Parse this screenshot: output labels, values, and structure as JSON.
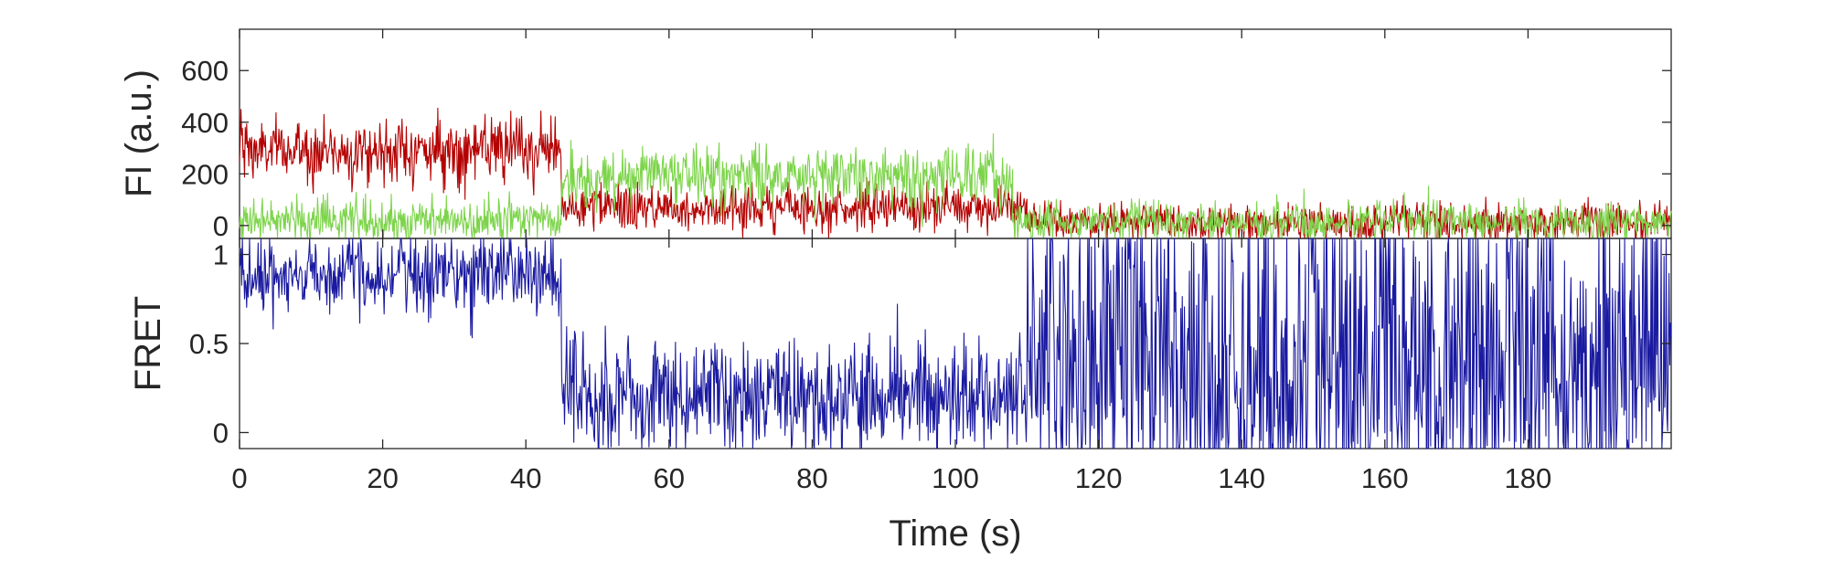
{
  "chart_data": [
    {
      "id": "fluorescence",
      "type": "line",
      "ylabel": "FI (a.u.)",
      "xlim": [
        0,
        200
      ],
      "ylim": [
        -50,
        760
      ],
      "yticks": [
        0,
        200,
        400,
        600
      ],
      "ytick_labels": [
        "0",
        "200",
        "400",
        "600"
      ],
      "grid": false,
      "series": [
        {
          "color": "#b40000",
          "sample_step": 0.1,
          "segments": [
            {
              "x": [
                0,
                1.5
              ],
              "mean": 300,
              "noise": 80
            },
            {
              "x": [
                1.5,
                45
              ],
              "mean": 290,
              "noise": 60
            },
            {
              "x": [
                45,
                110
              ],
              "mean": 70,
              "noise": 45
            },
            {
              "x": [
                110,
                200
              ],
              "mean": 15,
              "noise": 38
            }
          ]
        },
        {
          "color": "#7dd44b",
          "sample_step": 0.1,
          "segments": [
            {
              "x": [
                0,
                45
              ],
              "mean": 20,
              "noise": 42
            },
            {
              "x": [
                45,
                108
              ],
              "mean": 190,
              "noise": 55
            },
            {
              "x": [
                108,
                200
              ],
              "mean": 15,
              "noise": 38
            }
          ]
        }
      ]
    },
    {
      "id": "fret",
      "type": "line",
      "xlabel": "Time (s)",
      "ylabel": "FRET",
      "xlim": [
        0,
        200
      ],
      "ylim": [
        -0.09,
        1.09
      ],
      "yticks": [
        0,
        0.5,
        1
      ],
      "ytick_labels": [
        "0",
        "0.5",
        "1"
      ],
      "xticks": [
        0,
        20,
        40,
        60,
        80,
        100,
        120,
        140,
        160,
        180
      ],
      "xtick_labels": [
        "0",
        "20",
        "40",
        "60",
        "80",
        "100",
        "120",
        "140",
        "160",
        "180"
      ],
      "grid": false,
      "series": [
        {
          "color": "#1a1aa0",
          "sample_step": 0.1,
          "clip": [
            -0.09,
            1.09
          ],
          "segments": [
            {
              "x": [
                0,
                45
              ],
              "mean": 0.9,
              "noise": 0.11
            },
            {
              "x": [
                45,
                110
              ],
              "mean": 0.2,
              "noise": 0.16
            },
            {
              "x": [
                110,
                200
              ],
              "mean": 0.45,
              "noise": 0.55
            }
          ]
        }
      ]
    }
  ]
}
